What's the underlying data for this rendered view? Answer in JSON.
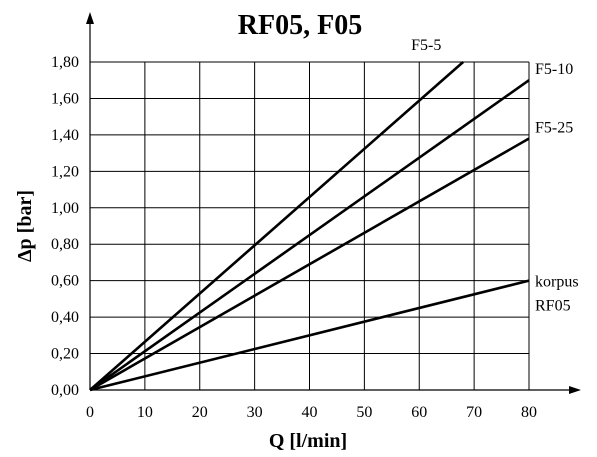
{
  "chart_data": {
    "type": "line",
    "title": "RF05, F05",
    "xlabel": "Q [l/min]",
    "ylabel": "Δp [bar]",
    "xlim": [
      0,
      80
    ],
    "ylim": [
      0,
      1.8
    ],
    "grid": true,
    "x_ticks": [
      0,
      10,
      20,
      30,
      40,
      50,
      60,
      70,
      80
    ],
    "x_tick_labels": [
      "0",
      "10",
      "20",
      "30",
      "40",
      "50",
      "60",
      "70",
      "80"
    ],
    "y_ticks": [
      0,
      0.2,
      0.4,
      0.6,
      0.8,
      1.0,
      1.2,
      1.4,
      1.6,
      1.8
    ],
    "y_tick_labels": [
      "0,00",
      "0,20",
      "0,40",
      "0,60",
      "0,80",
      "1,00",
      "1,20",
      "1,40",
      "1,60",
      "1,80"
    ],
    "series": [
      {
        "name": "F5-5",
        "x": [
          0,
          68
        ],
        "y": [
          0,
          1.8
        ]
      },
      {
        "name": "F5-10",
        "x": [
          0,
          80
        ],
        "y": [
          0,
          1.7
        ]
      },
      {
        "name": "F5-25",
        "x": [
          0,
          80
        ],
        "y": [
          0,
          1.38
        ]
      },
      {
        "name": "korpus RF05",
        "x": [
          0,
          80
        ],
        "y": [
          0,
          0.6
        ]
      }
    ]
  }
}
